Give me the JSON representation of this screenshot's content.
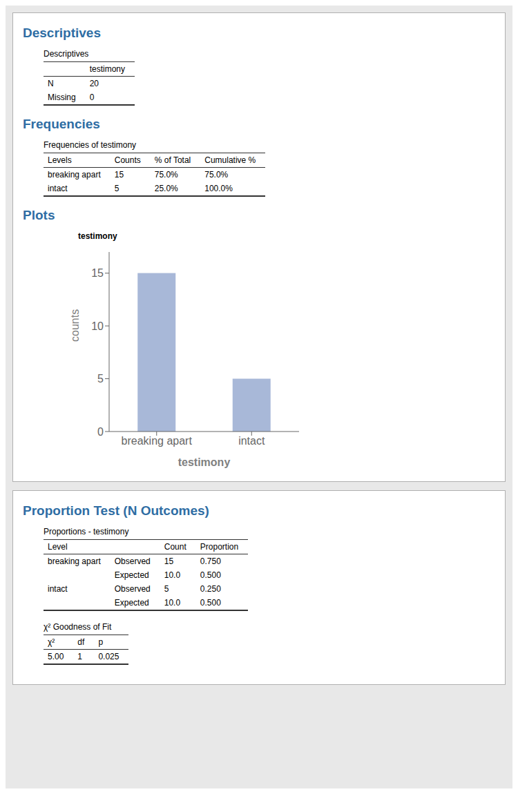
{
  "chart_data": {
    "type": "bar",
    "title": "testimony",
    "xlabel": "testimony",
    "ylabel": "counts",
    "categories": [
      "breaking apart",
      "intact"
    ],
    "values": [
      15,
      5
    ],
    "color": "#a8b8d8",
    "ylim": [
      0,
      17
    ],
    "yticks": [
      0,
      5,
      10,
      15
    ],
    "grid": false,
    "annotations": [
      {
        "heading": "Descriptives",
        "tables": [
          {
            "title": "Descriptives",
            "columns": [
              null,
              "testimony"
            ],
            "rows": [
              [
                "N",
                "20"
              ],
              [
                "Missing",
                "0"
              ]
            ]
          }
        ]
      },
      {
        "heading": "Frequencies",
        "tables": [
          {
            "title": "Frequencies of testimony",
            "columns": [
              "Levels",
              "Counts",
              "% of Total",
              "Cumulative %"
            ],
            "rows": [
              [
                "breaking apart",
                "15",
                "75.0%",
                "75.0%"
              ],
              [
                "intact",
                "5",
                "25.0%",
                "100.0%"
              ]
            ]
          }
        ]
      },
      {
        "heading": "Plots",
        "tables": []
      },
      {
        "heading": "Proportion Test (N Outcomes)",
        "tables": [
          {
            "title": "Proportions - testimony",
            "columns": [
              "Level",
              null,
              "Count",
              "Proportion"
            ],
            "rows": [
              [
                "breaking apart",
                "Observed",
                "15",
                "0.750"
              ],
              [
                null,
                "Expected",
                "10.0",
                "0.500"
              ],
              [
                "intact",
                "Observed",
                "5",
                "0.250"
              ],
              [
                null,
                "Expected",
                "10.0",
                "0.500"
              ]
            ]
          },
          {
            "title": "χ² Goodness of Fit",
            "columns": [
              "χ²",
              "df",
              "p"
            ],
            "rows": [
              [
                "5.00",
                "1",
                "0.025"
              ]
            ]
          }
        ]
      }
    ]
  }
}
